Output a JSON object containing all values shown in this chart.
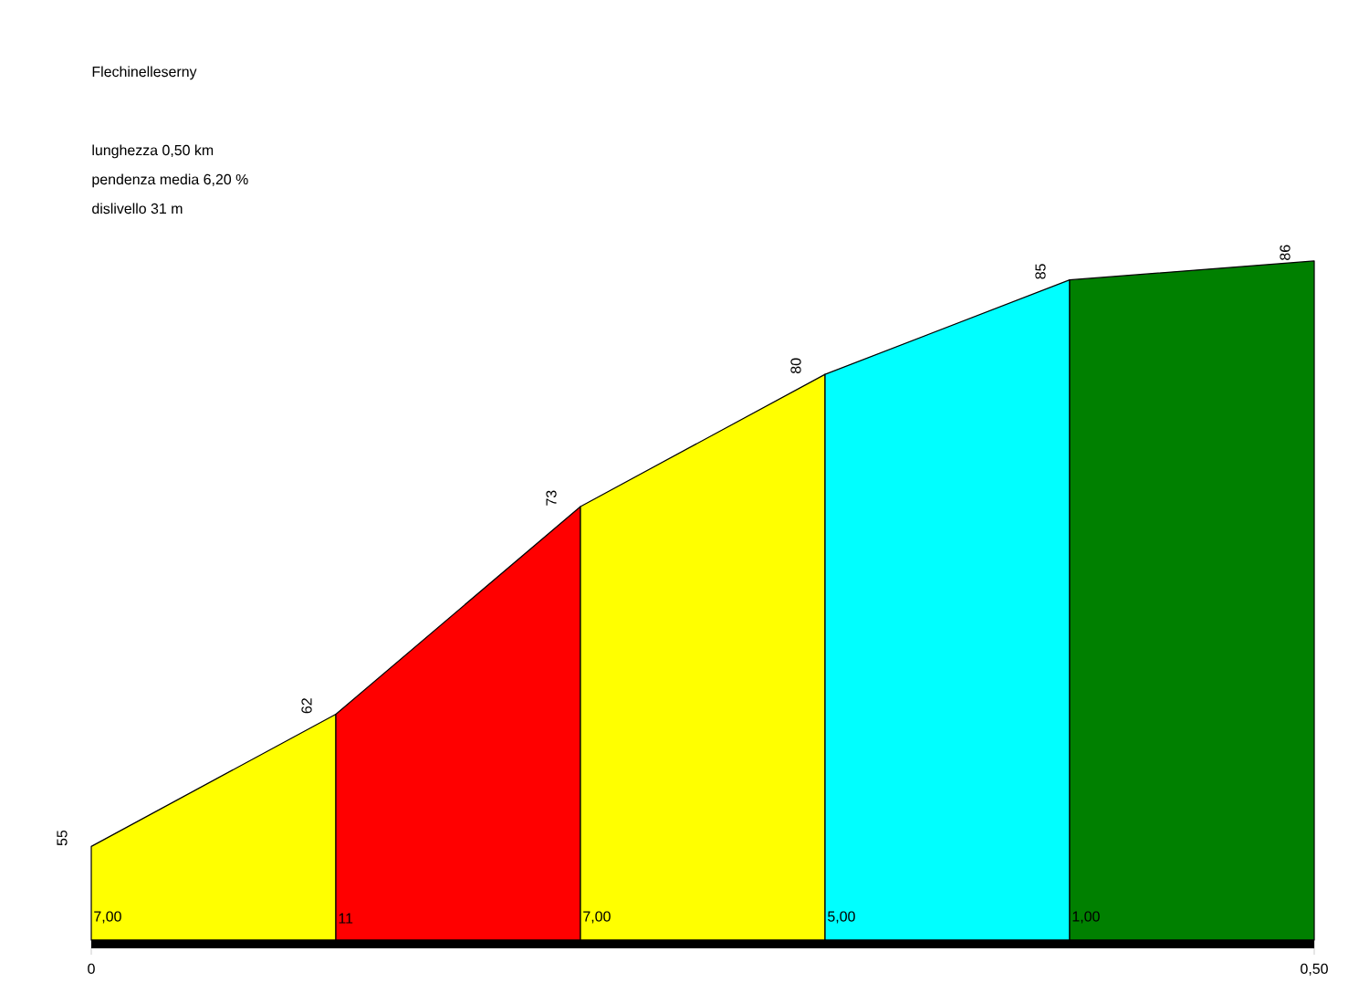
{
  "chart_data": {
    "type": "area",
    "title": "Flechinelleserny",
    "annotations": [
      "lunghezza 0,50 km",
      "pendenza media 6,20 %",
      "dislivello 31 m",
      "7,00",
      "11",
      "7,00",
      "5,00",
      "1,00"
    ],
    "series": [
      {
        "x": [
          0,
          0.1
        ],
        "values": [
          55,
          62
        ],
        "color": "#ffff00",
        "value_labels": [
          "55",
          "62"
        ]
      },
      {
        "x": [
          0.1,
          0.2
        ],
        "values": [
          62,
          73
        ],
        "color": "#ff0000",
        "value_labels": [
          null,
          "73"
        ]
      },
      {
        "x": [
          0.2,
          0.3
        ],
        "values": [
          73,
          80
        ],
        "color": "#ffff00",
        "value_labels": [
          null,
          "80"
        ]
      },
      {
        "x": [
          0.3,
          0.4
        ],
        "values": [
          80,
          85
        ],
        "color": "#00ffff",
        "value_labels": [
          null,
          "85"
        ]
      },
      {
        "x": [
          0.4,
          0.5
        ],
        "values": [
          85,
          86
        ],
        "color": "#008000",
        "value_labels": [
          null,
          "86"
        ]
      }
    ],
    "xlim": [
      0,
      0.5
    ],
    "xticks": [
      {
        "value": 0,
        "label": "0"
      },
      {
        "value": 0.5,
        "label": "0,50"
      }
    ],
    "tick_labels": "x"
  }
}
